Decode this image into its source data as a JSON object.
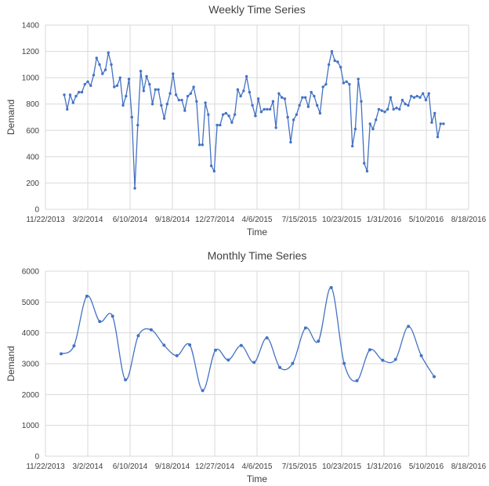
{
  "chart_data": [
    {
      "type": "line",
      "title": "Weekly Time Series",
      "xlabel": "Time",
      "ylabel": "Demand",
      "ylim": [
        0,
        1400
      ],
      "yticks": [
        "0",
        "200",
        "400",
        "600",
        "800",
        "1000",
        "1200",
        "1400"
      ],
      "xticks": [
        "11/22/2013",
        "3/2/2014",
        "6/10/2014",
        "9/18/2014",
        "12/27/2014",
        "4/6/2015",
        "7/15/2015",
        "10/23/2015",
        "1/31/2016",
        "5/10/2016",
        "8/18/2016"
      ],
      "grid": true,
      "color": "#4472c4",
      "series": [
        {
          "values": [
            870,
            760,
            870,
            810,
            860,
            890,
            890,
            950,
            970,
            940,
            1020,
            1150,
            1100,
            1030,
            1060,
            1190,
            1100,
            930,
            940,
            1000,
            790,
            860,
            990,
            700,
            160,
            640,
            1050,
            900,
            1010,
            950,
            800,
            910,
            910,
            790,
            690,
            800,
            880,
            1030,
            870,
            830,
            830,
            750,
            860,
            880,
            930,
            820,
            490,
            490,
            810,
            720,
            330,
            290,
            640,
            640,
            720,
            730,
            710,
            660,
            720,
            910,
            860,
            900,
            1010,
            890,
            790,
            710,
            840,
            740,
            760,
            760,
            760,
            820,
            620,
            880,
            850,
            840,
            700,
            510,
            680,
            720,
            790,
            850,
            850,
            780,
            890,
            860,
            790,
            730,
            930,
            950,
            1100,
            1200,
            1130,
            1120,
            1080,
            960,
            970,
            950,
            480,
            610,
            990,
            820,
            350,
            290,
            650,
            610,
            680,
            760,
            750,
            740,
            760,
            850,
            760,
            770,
            760,
            830,
            800,
            790,
            860,
            850,
            860,
            850,
            880,
            830,
            880,
            660,
            730,
            550,
            650,
            650
          ]
        }
      ]
    },
    {
      "type": "line",
      "title": "Monthly Time Series",
      "xlabel": "Time",
      "ylabel": "Demand",
      "ylim": [
        0,
        6000
      ],
      "yticks": [
        "0",
        "1000",
        "2000",
        "3000",
        "4000",
        "5000",
        "6000"
      ],
      "xticks": [
        "11/22/2013",
        "3/2/2014",
        "6/10/2014",
        "9/18/2014",
        "12/27/2014",
        "4/6/2015",
        "7/15/2015",
        "10/23/2015",
        "1/31/2016",
        "5/10/2016",
        "8/18/2016"
      ],
      "grid": true,
      "color": "#4472c4",
      "series": [
        {
          "values": [
            3320,
            3580,
            5190,
            4370,
            4540,
            2480,
            3910,
            4100,
            3600,
            3260,
            3610,
            2130,
            3440,
            3120,
            3590,
            3040,
            3840,
            2880,
            3010,
            4160,
            3730,
            5470,
            3010,
            2450,
            3450,
            3110,
            3140,
            4210,
            3260,
            2580
          ]
        }
      ]
    }
  ]
}
